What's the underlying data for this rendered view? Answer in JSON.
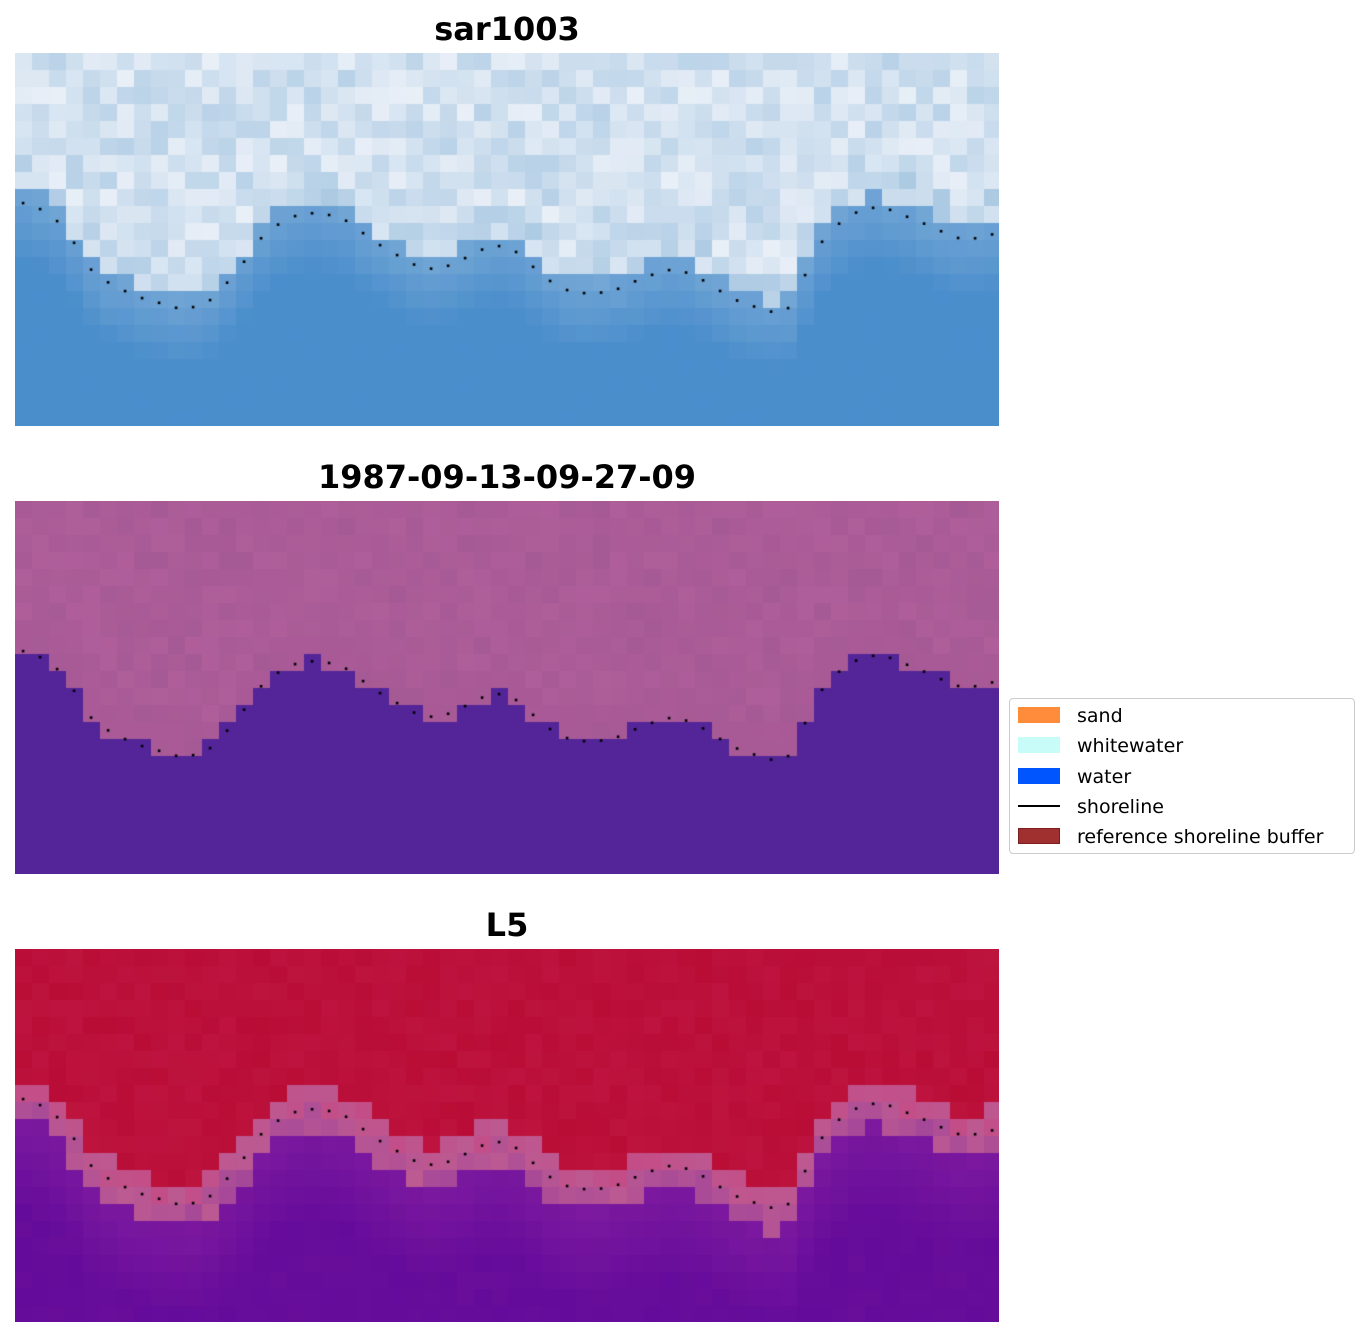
{
  "panels": [
    {
      "title": "sar1003",
      "colormap": "sar"
    },
    {
      "title": "1987-09-13-09-27-09",
      "colormap": "classification"
    },
    {
      "title": "L5",
      "colormap": "index"
    }
  ],
  "legend": {
    "items": [
      {
        "label": "sand",
        "type": "patch",
        "color": "#ff8c3a"
      },
      {
        "label": "whitewater",
        "type": "patch",
        "color": "#c8fcf8"
      },
      {
        "label": "water",
        "type": "patch",
        "color": "#0055ff"
      },
      {
        "label": "shoreline",
        "type": "line",
        "color": "#000000"
      },
      {
        "label": "reference shoreline buffer",
        "type": "patch",
        "color": "#a03030"
      }
    ]
  },
  "colors": {
    "sar_light": "#f4f6fb",
    "sar_mid": "#a9c8e2",
    "sar_dark": "#4a8ecb",
    "class_upper": "#a65a95",
    "class_water": "#532599",
    "index_top": "#b90d36",
    "index_mid": "#bc5a92",
    "index_bottom": "#650b9c",
    "shoreline_dots": "#000000"
  }
}
